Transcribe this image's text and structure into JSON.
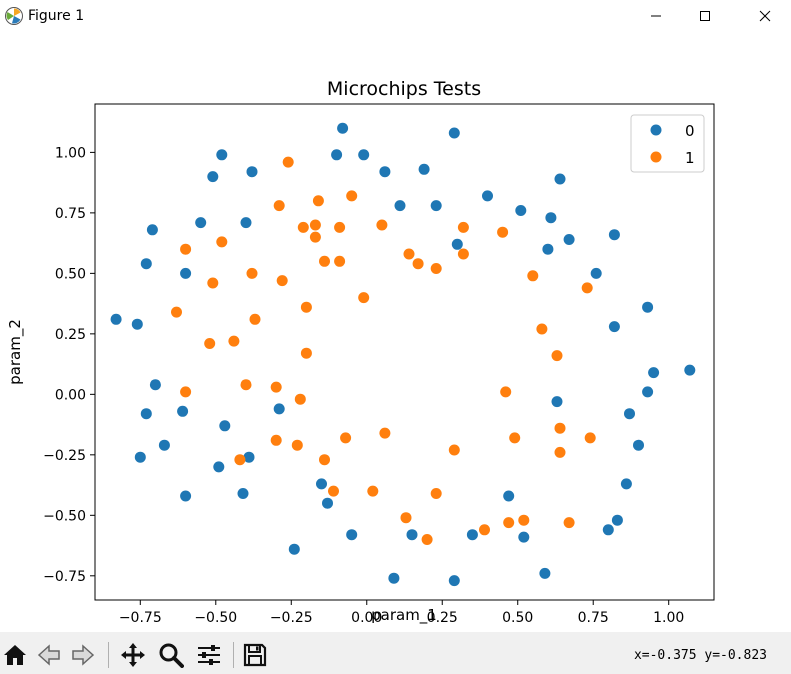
{
  "window": {
    "title": "Figure 1",
    "icons": [
      "app-icon",
      "minimize-icon",
      "maximize-icon",
      "close-icon"
    ]
  },
  "toolbar": {
    "buttons": [
      "home-icon",
      "back-icon",
      "forward-icon",
      "pan-icon",
      "zoom-icon",
      "configure-icon",
      "save-icon"
    ],
    "coords": "x=-0.375 y=-0.823"
  },
  "colors": {
    "class0": "#1f77b4",
    "class1": "#ff7f0e"
  },
  "chart_data": {
    "type": "scatter",
    "title": "Microchips Tests",
    "xlabel": "param_1",
    "ylabel": "param_2",
    "xlim": [
      -0.9,
      1.15
    ],
    "ylim": [
      -0.85,
      1.2
    ],
    "xticks": [
      -0.75,
      -0.5,
      -0.25,
      0.0,
      0.25,
      0.5,
      0.75,
      1.0
    ],
    "xtick_labels": [
      "−0.75",
      "−0.50",
      "−0.25",
      "0.00",
      "0.25",
      "0.50",
      "0.75",
      "1.00"
    ],
    "yticks": [
      -0.75,
      -0.5,
      -0.25,
      0.0,
      0.25,
      0.5,
      0.75,
      1.0
    ],
    "ytick_labels": [
      "−0.75",
      "−0.50",
      "−0.25",
      "0.00",
      "0.25",
      "0.50",
      "0.75",
      "1.00"
    ],
    "legend_position": "top-right",
    "series": [
      {
        "name": "0",
        "color": "#1f77b4",
        "points": [
          [
            -0.83,
            0.31
          ],
          [
            -0.76,
            0.29
          ],
          [
            -0.73,
            0.54
          ],
          [
            -0.71,
            0.68
          ],
          [
            -0.7,
            0.04
          ],
          [
            -0.73,
            -0.08
          ],
          [
            -0.75,
            -0.26
          ],
          [
            -0.67,
            -0.21
          ],
          [
            -0.61,
            -0.07
          ],
          [
            -0.6,
            -0.42
          ],
          [
            -0.6,
            0.5
          ],
          [
            -0.55,
            0.71
          ],
          [
            -0.51,
            0.9
          ],
          [
            -0.48,
            0.99
          ],
          [
            -0.4,
            0.71
          ],
          [
            -0.38,
            0.92
          ],
          [
            -0.47,
            -0.13
          ],
          [
            -0.49,
            -0.3
          ],
          [
            -0.41,
            -0.41
          ],
          [
            -0.39,
            -0.26
          ],
          [
            -0.29,
            -0.06
          ],
          [
            -0.24,
            -0.64
          ],
          [
            -0.15,
            -0.37
          ],
          [
            -0.13,
            -0.45
          ],
          [
            -0.08,
            1.1
          ],
          [
            -0.1,
            0.99
          ],
          [
            -0.01,
            0.99
          ],
          [
            0.06,
            0.92
          ],
          [
            0.11,
            0.78
          ],
          [
            0.19,
            0.93
          ],
          [
            0.23,
            0.78
          ],
          [
            0.29,
            1.08
          ],
          [
            0.3,
            0.62
          ],
          [
            0.4,
            0.82
          ],
          [
            0.51,
            0.76
          ],
          [
            0.61,
            0.73
          ],
          [
            0.64,
            0.89
          ],
          [
            0.67,
            0.64
          ],
          [
            0.6,
            0.6
          ],
          [
            0.76,
            0.5
          ],
          [
            0.82,
            0.66
          ],
          [
            0.93,
            0.36
          ],
          [
            0.82,
            0.28
          ],
          [
            0.95,
            0.09
          ],
          [
            0.93,
            0.01
          ],
          [
            1.07,
            0.1
          ],
          [
            0.63,
            -0.03
          ],
          [
            0.87,
            -0.08
          ],
          [
            0.9,
            -0.21
          ],
          [
            0.86,
            -0.37
          ],
          [
            0.83,
            -0.52
          ],
          [
            0.8,
            -0.56
          ],
          [
            0.59,
            -0.74
          ],
          [
            0.52,
            -0.59
          ],
          [
            0.47,
            -0.42
          ],
          [
            0.35,
            -0.58
          ],
          [
            0.29,
            -0.77
          ],
          [
            0.15,
            -0.58
          ],
          [
            0.09,
            -0.76
          ],
          [
            -0.05,
            -0.58
          ]
        ]
      },
      {
        "name": "1",
        "color": "#ff7f0e",
        "points": [
          [
            -0.26,
            0.96
          ],
          [
            -0.29,
            0.78
          ],
          [
            -0.21,
            0.69
          ],
          [
            -0.17,
            0.7
          ],
          [
            -0.16,
            0.8
          ],
          [
            -0.17,
            0.65
          ],
          [
            -0.09,
            0.69
          ],
          [
            -0.05,
            0.82
          ],
          [
            -0.6,
            0.6
          ],
          [
            -0.48,
            0.63
          ],
          [
            -0.51,
            0.46
          ],
          [
            -0.63,
            0.34
          ],
          [
            -0.52,
            0.21
          ],
          [
            -0.44,
            0.22
          ],
          [
            -0.38,
            0.5
          ],
          [
            -0.37,
            0.31
          ],
          [
            -0.28,
            0.47
          ],
          [
            -0.2,
            0.36
          ],
          [
            -0.14,
            0.55
          ],
          [
            -0.09,
            0.55
          ],
          [
            -0.01,
            0.4
          ],
          [
            0.05,
            0.7
          ],
          [
            0.14,
            0.58
          ],
          [
            0.17,
            0.54
          ],
          [
            0.23,
            0.52
          ],
          [
            0.32,
            0.69
          ],
          [
            0.32,
            0.58
          ],
          [
            0.45,
            0.67
          ],
          [
            0.55,
            0.49
          ],
          [
            0.58,
            0.27
          ],
          [
            0.63,
            0.16
          ],
          [
            0.73,
            0.44
          ],
          [
            0.64,
            -0.14
          ],
          [
            0.64,
            -0.24
          ],
          [
            0.74,
            -0.18
          ],
          [
            0.67,
            -0.53
          ],
          [
            0.52,
            -0.52
          ],
          [
            0.47,
            -0.53
          ],
          [
            0.39,
            -0.56
          ],
          [
            0.49,
            -0.18
          ],
          [
            0.46,
            0.01
          ],
          [
            0.29,
            -0.23
          ],
          [
            0.23,
            -0.41
          ],
          [
            0.2,
            -0.6
          ],
          [
            0.13,
            -0.51
          ],
          [
            0.02,
            -0.4
          ],
          [
            0.06,
            -0.16
          ],
          [
            -0.07,
            -0.18
          ],
          [
            -0.11,
            -0.4
          ],
          [
            -0.14,
            -0.27
          ],
          [
            -0.23,
            -0.21
          ],
          [
            -0.22,
            -0.02
          ],
          [
            -0.2,
            0.17
          ],
          [
            -0.3,
            0.03
          ],
          [
            -0.3,
            -0.19
          ],
          [
            -0.4,
            0.04
          ],
          [
            -0.42,
            -0.27
          ],
          [
            -0.6,
            0.01
          ]
        ]
      }
    ]
  }
}
